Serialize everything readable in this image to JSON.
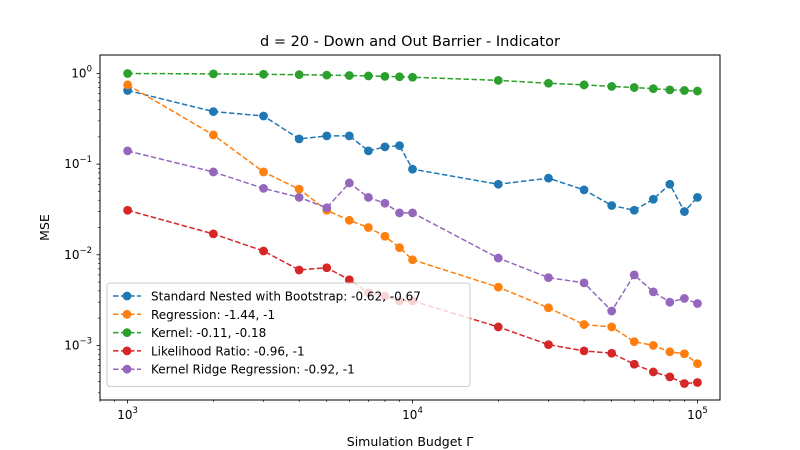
{
  "chart_data": {
    "type": "line",
    "title": "d = 20 - Down and Out Barrier - Indicator",
    "xlabel": "Simulation Budget Γ",
    "ylabel": "MSE",
    "xscale": "log",
    "yscale": "log",
    "xlim": [
      800,
      120000
    ],
    "ylim": [
      0.00025,
      1.6
    ],
    "xticks": [
      {
        "value": 1000,
        "base": "10",
        "exp": "3"
      },
      {
        "value": 10000,
        "base": "10",
        "exp": "4"
      },
      {
        "value": 100000,
        "base": "10",
        "exp": "5"
      }
    ],
    "yticks": [
      {
        "value": 0.001,
        "base": "10",
        "exp": "−3"
      },
      {
        "value": 0.01,
        "base": "10",
        "exp": "−2"
      },
      {
        "value": 0.1,
        "base": "10",
        "exp": "−1"
      },
      {
        "value": 1,
        "base": "10",
        "exp": "0"
      }
    ],
    "grid": false,
    "legend_position": "lower-left",
    "x": [
      1000,
      2000,
      3000,
      4000,
      5000,
      6000,
      7000,
      8000,
      9000,
      10000,
      20000,
      30000,
      40000,
      50000,
      60000,
      70000,
      80000,
      90000,
      100000
    ],
    "series": [
      {
        "name": "Standard Nested with Bootstrap: -0.62, -0.67",
        "color": "#1f77b4",
        "values": [
          0.65,
          0.38,
          0.34,
          0.19,
          0.205,
          0.205,
          0.14,
          0.155,
          0.16,
          0.088,
          0.06,
          0.07,
          0.052,
          0.035,
          0.031,
          0.041,
          0.06,
          0.03,
          0.043
        ]
      },
      {
        "name": "Regression: -1.44, -1",
        "color": "#ff7f0e",
        "values": [
          0.75,
          0.21,
          0.082,
          0.053,
          0.031,
          0.024,
          0.02,
          0.016,
          0.012,
          0.0088,
          0.0044,
          0.0026,
          0.0017,
          0.0016,
          0.0011,
          0.001,
          0.00085,
          0.00081,
          0.00063
        ]
      },
      {
        "name": "Kernel: -0.11, -0.18",
        "color": "#2ca02c",
        "values": [
          1.0,
          0.99,
          0.98,
          0.97,
          0.96,
          0.95,
          0.94,
          0.93,
          0.92,
          0.91,
          0.84,
          0.78,
          0.75,
          0.72,
          0.7,
          0.68,
          0.66,
          0.65,
          0.64
        ]
      },
      {
        "name": "Likelihood Ratio: -0.96, -1",
        "color": "#d62728",
        "values": [
          0.031,
          0.017,
          0.011,
          0.0068,
          0.0072,
          0.0053,
          0.0038,
          0.0035,
          0.0031,
          0.0031,
          0.0016,
          0.00102,
          0.00087,
          0.00082,
          0.00062,
          0.00051,
          0.00045,
          0.00038,
          0.00039
        ]
      },
      {
        "name": "Kernel Ridge Regression: -0.92, -1",
        "color": "#9467bd",
        "values": [
          0.14,
          0.082,
          0.054,
          0.043,
          0.033,
          0.062,
          0.043,
          0.037,
          0.029,
          0.029,
          0.0092,
          0.0056,
          0.0049,
          0.0024,
          0.006,
          0.0039,
          0.003,
          0.0033,
          0.0029
        ]
      }
    ]
  }
}
